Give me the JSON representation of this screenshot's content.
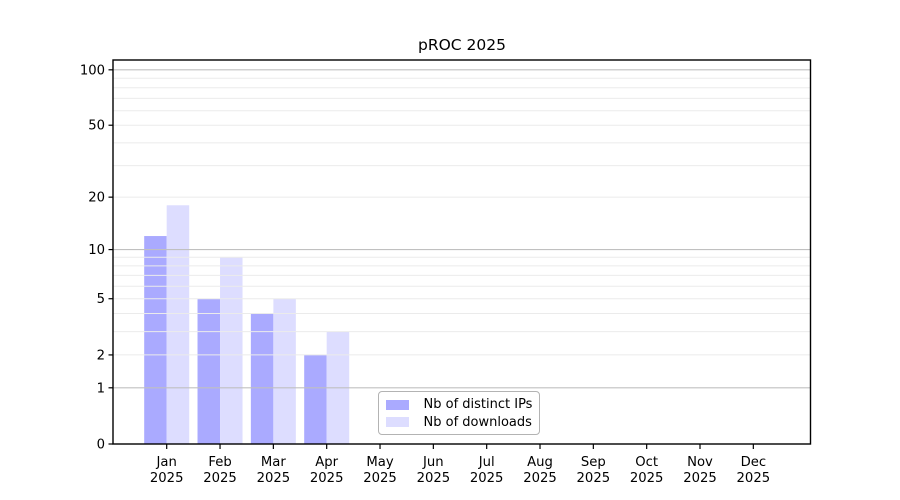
{
  "chart_data": {
    "type": "bar",
    "title": "pROC 2025",
    "year": "2025",
    "categories": [
      "Jan",
      "Feb",
      "Mar",
      "Apr",
      "May",
      "Jun",
      "Jul",
      "Aug",
      "Sep",
      "Oct",
      "Nov",
      "Dec"
    ],
    "series": [
      {
        "name": "Nb of distinct IPs",
        "color": "#aaaaff",
        "values": [
          12,
          5,
          4,
          2,
          0,
          0,
          0,
          0,
          0,
          0,
          0,
          0
        ]
      },
      {
        "name": "Nb of downloads",
        "color": "#ddddff",
        "values": [
          18,
          9,
          5,
          3,
          0,
          0,
          0,
          0,
          0,
          0,
          0,
          0
        ]
      }
    ],
    "y_axis": {
      "scale": "log10(value+1)",
      "tick_labels": [
        0,
        1,
        2,
        5,
        10,
        20,
        50,
        100
      ],
      "max": 113,
      "major_gridlines": [
        1,
        10,
        100
      ],
      "minor_gridlines": [
        2,
        3,
        4,
        5,
        6,
        7,
        8,
        9,
        20,
        30,
        40,
        50,
        60,
        70,
        80,
        90
      ]
    },
    "legend": {
      "position": "lower-center"
    },
    "colors": {
      "major_grid": "#c0c0c0",
      "minor_grid": "#ebebeb",
      "spine": "#000000",
      "text": "#000000",
      "background": "#ffffff"
    }
  }
}
